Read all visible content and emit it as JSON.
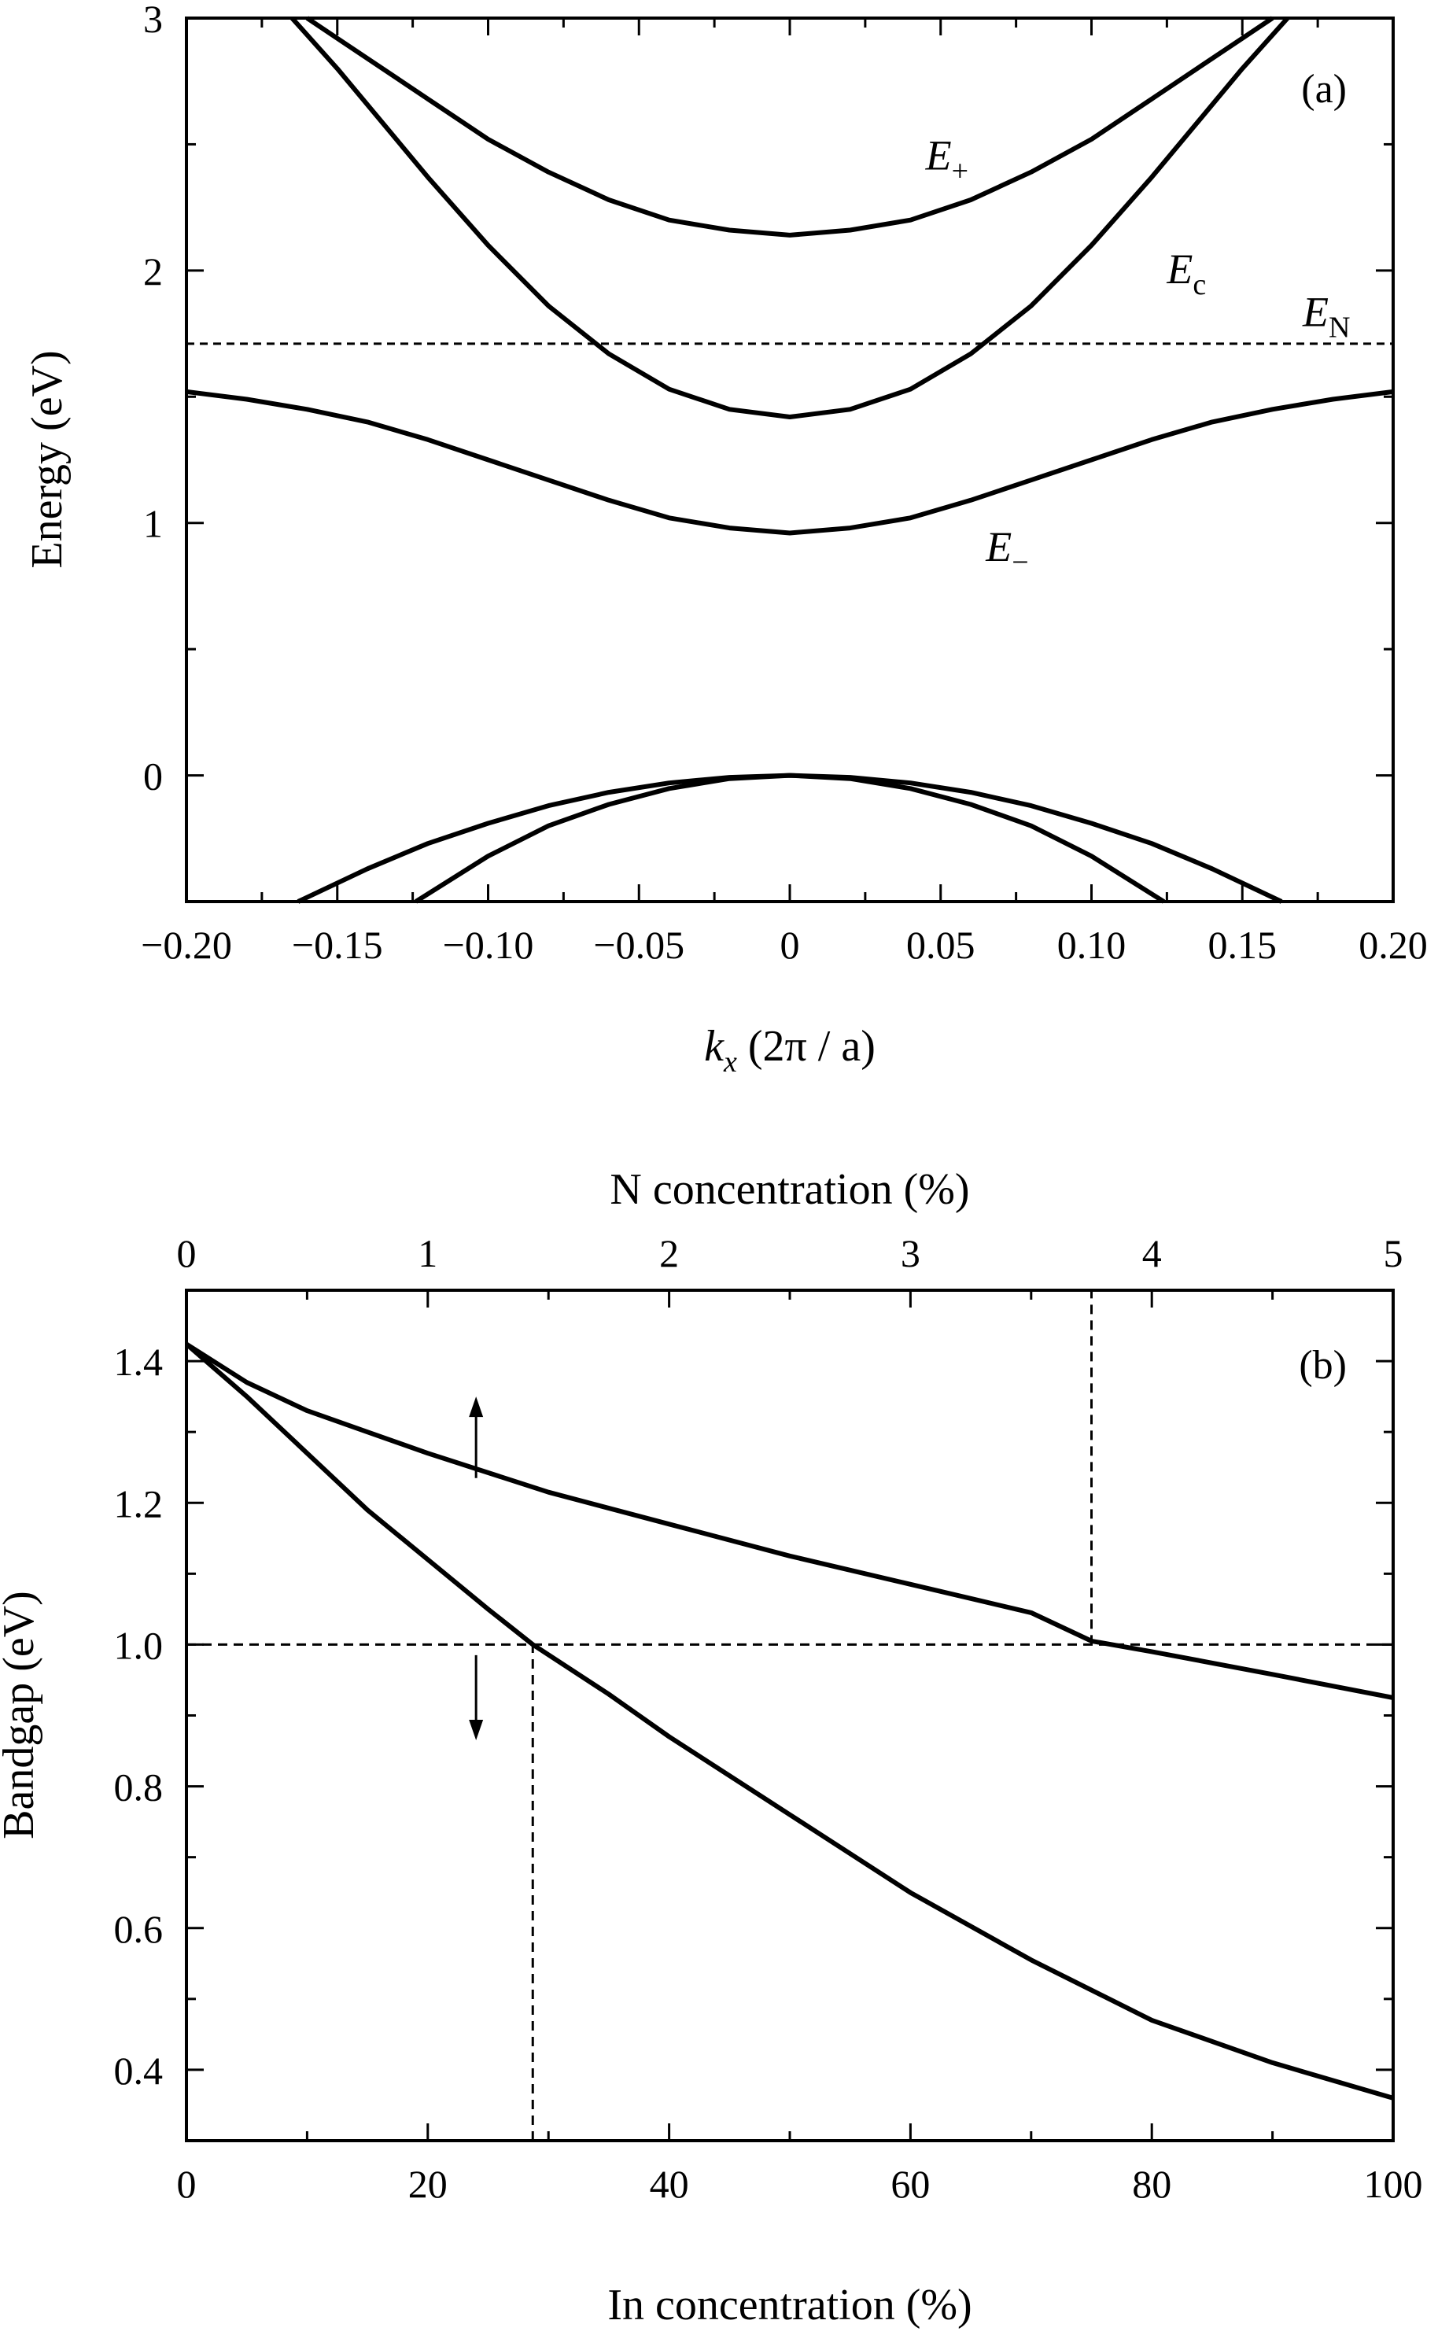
{
  "chart_data": [
    {
      "panel_label": "(a)",
      "type": "line",
      "xlabel": {
        "main": "k",
        "sub": "x",
        "rest": " (2π / a)"
      },
      "ylabel": "Energy (eV)",
      "xlim": [
        -0.2,
        0.2
      ],
      "ylim": [
        -0.5,
        3
      ],
      "xticks": [
        "−0.20",
        "−0.15",
        "−0.10",
        "−0.05",
        "0",
        "0.05",
        "0.10",
        "0.15",
        "0.20"
      ],
      "xtick_values": [
        -0.2,
        -0.15,
        -0.1,
        -0.05,
        0,
        0.05,
        0.1,
        0.15,
        0.2
      ],
      "yticks": [
        "0",
        "1",
        "2",
        "3"
      ],
      "ytick_values": [
        0,
        1,
        2,
        3
      ],
      "series": [
        {
          "name": "E+",
          "style": "solid",
          "x": [
            -0.16,
            -0.15,
            -0.12,
            -0.1,
            -0.08,
            -0.06,
            -0.04,
            -0.02,
            0,
            0.02,
            0.04,
            0.06,
            0.08,
            0.1,
            0.12,
            0.15,
            0.16
          ],
          "y": [
            3.0,
            2.92,
            2.68,
            2.52,
            2.39,
            2.28,
            2.2,
            2.16,
            2.14,
            2.16,
            2.2,
            2.28,
            2.39,
            2.52,
            2.68,
            2.92,
            3.0
          ]
        },
        {
          "name": "Ec",
          "style": "solid",
          "x": [
            -0.165,
            -0.15,
            -0.12,
            -0.1,
            -0.08,
            -0.06,
            -0.04,
            -0.02,
            0,
            0.02,
            0.04,
            0.06,
            0.08,
            0.1,
            0.12,
            0.15,
            0.165
          ],
          "y": [
            3.0,
            2.8,
            2.37,
            2.1,
            1.86,
            1.67,
            1.53,
            1.45,
            1.42,
            1.45,
            1.53,
            1.67,
            1.86,
            2.1,
            2.37,
            2.8,
            3.0
          ]
        },
        {
          "name": "E−",
          "style": "solid",
          "x": [
            -0.2,
            -0.18,
            -0.16,
            -0.14,
            -0.12,
            -0.1,
            -0.08,
            -0.06,
            -0.04,
            -0.02,
            0,
            0.02,
            0.04,
            0.06,
            0.08,
            0.1,
            0.12,
            0.14,
            0.16,
            0.18,
            0.2
          ],
          "y": [
            1.52,
            1.49,
            1.45,
            1.4,
            1.33,
            1.25,
            1.17,
            1.09,
            1.02,
            0.98,
            0.96,
            0.98,
            1.02,
            1.09,
            1.17,
            1.25,
            1.33,
            1.4,
            1.45,
            1.49,
            1.52
          ]
        },
        {
          "name": "EN",
          "style": "dashed",
          "x": [
            -0.2,
            0.2
          ],
          "y": [
            1.71,
            1.71
          ]
        },
        {
          "name": "valence-1",
          "style": "solid",
          "x": [
            -0.163,
            -0.14,
            -0.12,
            -0.1,
            -0.08,
            -0.06,
            -0.04,
            -0.02,
            0,
            0.02,
            0.04,
            0.06,
            0.08,
            0.1,
            0.12,
            0.14,
            0.163
          ],
          "y": [
            -0.5,
            -0.37,
            -0.27,
            -0.19,
            -0.12,
            -0.067,
            -0.03,
            -0.008,
            0,
            -0.008,
            -0.03,
            -0.067,
            -0.12,
            -0.19,
            -0.27,
            -0.37,
            -0.5
          ]
        },
        {
          "name": "valence-2",
          "style": "solid",
          "x": [
            -0.124,
            -0.1,
            -0.08,
            -0.06,
            -0.04,
            -0.02,
            0,
            0.02,
            0.04,
            0.06,
            0.08,
            0.1,
            0.124
          ],
          "y": [
            -0.5,
            -0.32,
            -0.2,
            -0.115,
            -0.052,
            -0.013,
            0,
            -0.013,
            -0.052,
            -0.115,
            -0.2,
            -0.32,
            -0.5
          ]
        }
      ],
      "annotations": [
        {
          "main": "E",
          "sub": "+",
          "x": 0.045,
          "y": 2.4
        },
        {
          "main": "E",
          "sub": "c",
          "x": 0.125,
          "y": 1.95
        },
        {
          "main": "E",
          "sub": "N",
          "x": 0.17,
          "y": 1.78
        },
        {
          "main": "E",
          "sub": "−",
          "x": 0.065,
          "y": 0.85
        }
      ]
    },
    {
      "panel_label": "(b)",
      "type": "line",
      "xlabel": "In concentration (%)",
      "x2label": "N concentration (%)",
      "ylabel": "Bandgap (eV)",
      "xlim": [
        0,
        100
      ],
      "x2lim": [
        0,
        5
      ],
      "ylim": [
        0.3,
        1.5
      ],
      "xticks": [
        "0",
        "20",
        "40",
        "60",
        "80",
        "100"
      ],
      "xtick_values": [
        0,
        20,
        40,
        60,
        80,
        100
      ],
      "x2ticks": [
        "0",
        "1",
        "2",
        "3",
        "4",
        "5"
      ],
      "x2tick_values": [
        0,
        1,
        2,
        3,
        4,
        5
      ],
      "yticks": [
        "0.4",
        "0.6",
        "0.8",
        "1.0",
        "1.2",
        "1.4"
      ],
      "ytick_values": [
        0.4,
        0.6,
        0.8,
        1.0,
        1.2,
        1.4
      ],
      "series": [
        {
          "name": "N concentration (top axis)",
          "axis": "top",
          "style": "solid",
          "x": [
            0,
            0.25,
            0.5,
            0.75,
            1,
            1.5,
            2,
            2.5,
            3,
            3.5,
            3.75,
            4,
            4.5,
            5
          ],
          "y": [
            1.424,
            1.37,
            1.33,
            1.3,
            1.27,
            1.215,
            1.17,
            1.125,
            1.085,
            1.045,
            1.005,
            0.99,
            0.958,
            0.925
          ]
        },
        {
          "name": "In concentration (bottom axis)",
          "axis": "bottom",
          "style": "solid",
          "x": [
            0,
            5,
            10,
            15,
            20,
            25,
            28.7,
            35,
            40,
            50,
            60,
            70,
            80,
            90,
            100
          ],
          "y": [
            1.424,
            1.35,
            1.27,
            1.19,
            1.12,
            1.05,
            1.0,
            0.93,
            0.87,
            0.76,
            0.65,
            0.555,
            0.47,
            0.41,
            0.36
          ]
        }
      ],
      "reference_lines": [
        {
          "kind": "horizontal",
          "y": 1.0,
          "x_from": 0,
          "x_to": 100
        },
        {
          "kind": "vertical",
          "x": 28.7,
          "y_from": 0.3,
          "y_to": 1.0
        },
        {
          "kind": "vertical",
          "x": 75,
          "y_from": 1.0,
          "y_to": 1.5
        }
      ],
      "arrows": [
        {
          "direction": "up",
          "x": 24,
          "y_from": 1.235,
          "y_to": 1.35
        },
        {
          "direction": "down",
          "x": 24,
          "y_from": 0.985,
          "y_to": 0.865
        }
      ]
    }
  ]
}
